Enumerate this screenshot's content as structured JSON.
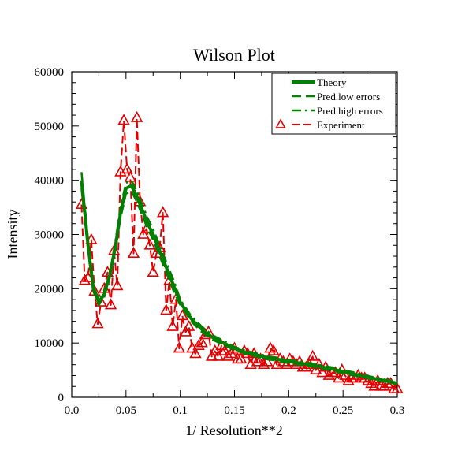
{
  "chart_data": {
    "type": "line",
    "title": "Wilson Plot",
    "xlabel": "1/ Resolution**2",
    "ylabel": "Intensity",
    "xlim": [
      0,
      0.3
    ],
    "ylim": [
      0,
      60000
    ],
    "x_ticks": [
      0,
      0.05,
      0.1,
      0.15,
      0.2,
      0.25,
      0.3
    ],
    "x_tick_labels": [
      "0.0",
      "0.05",
      "0.1",
      "0.15",
      "0.2",
      "0.25",
      "0.3"
    ],
    "y_ticks": [
      0,
      10000,
      20000,
      30000,
      40000,
      50000,
      60000
    ],
    "y_tick_labels": [
      "0",
      "10000",
      "20000",
      "30000",
      "40000",
      "50000",
      "60000"
    ],
    "grid": false,
    "legend_position": "top-right",
    "series": [
      {
        "name": "Theory",
        "color": "#008000",
        "style": "solid",
        "x": [
          0.009,
          0.015,
          0.02,
          0.025,
          0.03,
          0.035,
          0.04,
          0.045,
          0.05,
          0.055,
          0.06,
          0.065,
          0.07,
          0.075,
          0.08,
          0.085,
          0.09,
          0.095,
          0.1,
          0.11,
          0.12,
          0.13,
          0.14,
          0.15,
          0.16,
          0.17,
          0.18,
          0.19,
          0.2,
          0.21,
          0.22,
          0.23,
          0.24,
          0.25,
          0.26,
          0.27,
          0.28,
          0.29,
          0.3
        ],
        "values": [
          40000,
          28000,
          20000,
          17500,
          19000,
          22500,
          27500,
          34000,
          38500,
          39000,
          37000,
          34500,
          32000,
          30000,
          27500,
          25000,
          22500,
          20000,
          17500,
          14500,
          12500,
          11000,
          10000,
          9000,
          8300,
          7800,
          7300,
          7000,
          6600,
          6300,
          6000,
          5600,
          5200,
          4700,
          4300,
          3800,
          3400,
          3000,
          2600
        ]
      },
      {
        "name": "Pred.low errors",
        "color": "#008000",
        "style": "dashed",
        "x": [
          0.009,
          0.015,
          0.02,
          0.025,
          0.03,
          0.035,
          0.04,
          0.045,
          0.05,
          0.055,
          0.06,
          0.065,
          0.07,
          0.075,
          0.08,
          0.085,
          0.09,
          0.095,
          0.1,
          0.11,
          0.12,
          0.13,
          0.14,
          0.15,
          0.16,
          0.17,
          0.18,
          0.19,
          0.2,
          0.21,
          0.22,
          0.23,
          0.24,
          0.25,
          0.26,
          0.27,
          0.28,
          0.29,
          0.3
        ],
        "values": [
          38500,
          27000,
          19500,
          17000,
          18500,
          22000,
          27000,
          33000,
          37500,
          38000,
          36000,
          33500,
          31000,
          29000,
          26500,
          24000,
          21500,
          19000,
          17000,
          14000,
          12000,
          10600,
          9600,
          8700,
          8000,
          7500,
          7000,
          6700,
          6300,
          6000,
          5700,
          5300,
          4900,
          4400,
          4000,
          3600,
          3200,
          2800,
          2400
        ]
      },
      {
        "name": "Pred.high errors",
        "color": "#008000",
        "style": "dashdot",
        "x": [
          0.009,
          0.015,
          0.02,
          0.025,
          0.03,
          0.035,
          0.04,
          0.045,
          0.05,
          0.055,
          0.06,
          0.065,
          0.07,
          0.075,
          0.08,
          0.085,
          0.09,
          0.095,
          0.1,
          0.11,
          0.12,
          0.13,
          0.14,
          0.15,
          0.16,
          0.17,
          0.18,
          0.19,
          0.2,
          0.21,
          0.22,
          0.23,
          0.24,
          0.25,
          0.26,
          0.27,
          0.28,
          0.29,
          0.3
        ],
        "values": [
          41500,
          29000,
          20500,
          18000,
          19500,
          23000,
          28500,
          35000,
          39500,
          40000,
          38000,
          35500,
          33000,
          31000,
          28500,
          26000,
          23500,
          21000,
          18000,
          15000,
          13000,
          11400,
          10400,
          9300,
          8600,
          8100,
          7600,
          7300,
          6900,
          6600,
          6300,
          5900,
          5500,
          5000,
          4600,
          4100,
          3600,
          3200,
          2800
        ]
      },
      {
        "name": "Experiment",
        "color": "#e00000",
        "style": "dashed",
        "marker": "triangle",
        "x": [
          0.009,
          0.012,
          0.015,
          0.018,
          0.021,
          0.024,
          0.027,
          0.03,
          0.033,
          0.036,
          0.039,
          0.042,
          0.045,
          0.048,
          0.051,
          0.054,
          0.057,
          0.06,
          0.063,
          0.066,
          0.069,
          0.072,
          0.075,
          0.078,
          0.081,
          0.084,
          0.087,
          0.09,
          0.093,
          0.096,
          0.099,
          0.102,
          0.105,
          0.108,
          0.111,
          0.114,
          0.117,
          0.12,
          0.123,
          0.126,
          0.129,
          0.132,
          0.135,
          0.138,
          0.141,
          0.144,
          0.147,
          0.15,
          0.153,
          0.156,
          0.159,
          0.162,
          0.165,
          0.168,
          0.171,
          0.174,
          0.177,
          0.18,
          0.183,
          0.186,
          0.189,
          0.192,
          0.195,
          0.198,
          0.201,
          0.204,
          0.207,
          0.21,
          0.213,
          0.216,
          0.219,
          0.222,
          0.225,
          0.228,
          0.231,
          0.234,
          0.237,
          0.24,
          0.243,
          0.246,
          0.249,
          0.252,
          0.255,
          0.258,
          0.261,
          0.264,
          0.267,
          0.27,
          0.273,
          0.276,
          0.279,
          0.282,
          0.285,
          0.288,
          0.291,
          0.294,
          0.297,
          0.3
        ],
        "values": [
          35500,
          21500,
          22000,
          29000,
          19500,
          13500,
          17500,
          20000,
          23000,
          17000,
          27000,
          20500,
          41500,
          51000,
          42000,
          40500,
          26500,
          51500,
          36000,
          30000,
          31000,
          28000,
          23000,
          26500,
          27500,
          34000,
          16000,
          21500,
          13000,
          18000,
          9000,
          15000,
          12000,
          13000,
          9000,
          8000,
          9500,
          10000,
          11500,
          12000,
          7500,
          8500,
          7500,
          9500,
          8500,
          7500,
          8000,
          9000,
          7000,
          7000,
          8500,
          8000,
          6000,
          8000,
          6500,
          7000,
          6000,
          6500,
          9000,
          8500,
          6000,
          7000,
          6500,
          6000,
          7000,
          6500,
          6000,
          6500,
          5500,
          5500,
          6000,
          7500,
          5000,
          6000,
          4500,
          5500,
          4000,
          4500,
          4500,
          3500,
          5000,
          4000,
          3000,
          3500,
          3500,
          4000,
          3500,
          3500,
          3000,
          2500,
          2000,
          3000,
          2000,
          2000,
          2500,
          2500,
          1500,
          1500
        ]
      }
    ]
  }
}
